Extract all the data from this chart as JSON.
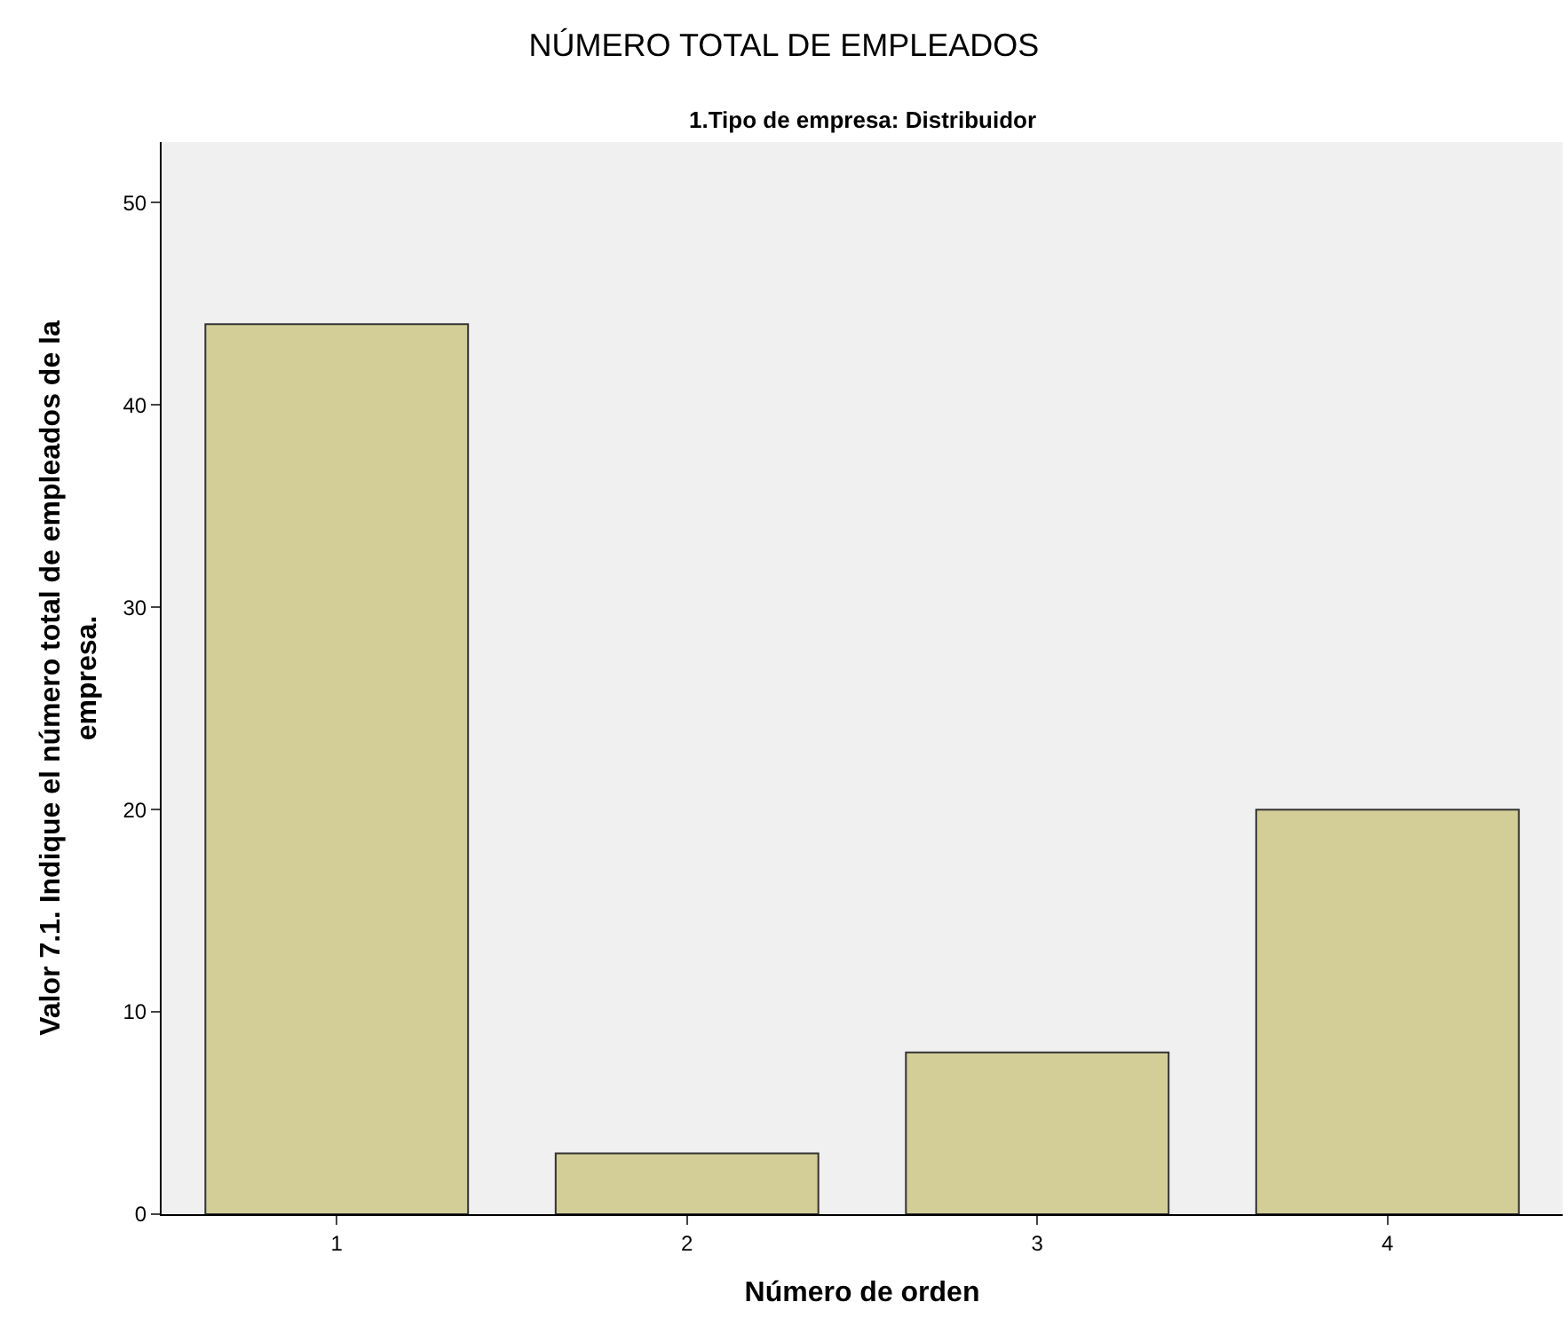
{
  "chart_data": {
    "type": "bar",
    "title": "NÚMERO TOTAL DE EMPLEADOS",
    "subtitle": "1.Tipo de empresa: Distribuidor",
    "xlabel": "Número de orden",
    "ylabel": "Valor 7.1. Indique el número total de empleados de la empresa.",
    "categories": [
      "1",
      "2",
      "3",
      "4"
    ],
    "values": [
      44,
      3,
      8,
      20
    ],
    "color": "#d3ce98",
    "ylim": [
      0,
      53
    ],
    "yticks": [
      0,
      10,
      20,
      30,
      40,
      50
    ]
  }
}
